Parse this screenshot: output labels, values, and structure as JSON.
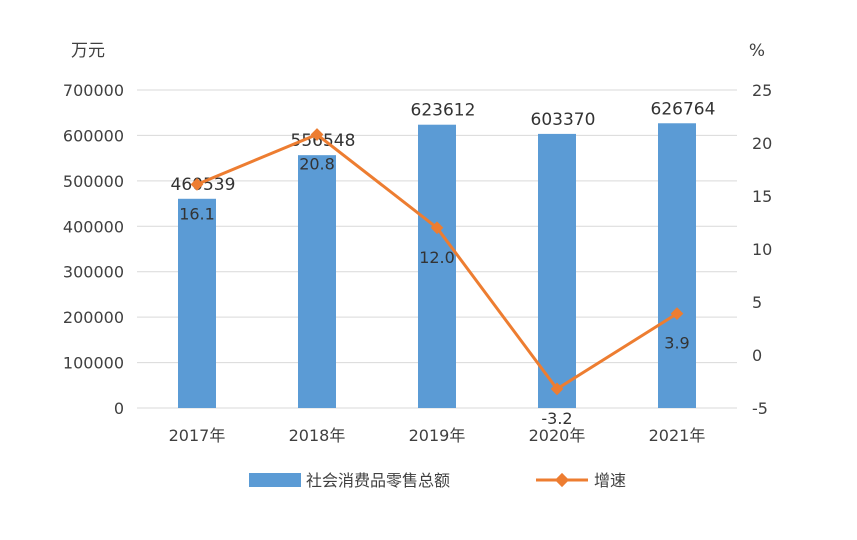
{
  "chart_data": {
    "type": "bar+line",
    "categories": [
      "2017年",
      "2018年",
      "2019年",
      "2020年",
      "2021年"
    ],
    "series": [
      {
        "name": "社会消费品零售总额",
        "type": "bar",
        "axis": "left",
        "values": [
          460539,
          556548,
          623612,
          603370,
          626764
        ],
        "labels": [
          "460539",
          "556548",
          "623612",
          "603370",
          "626764"
        ],
        "color": "#5B9BD5"
      },
      {
        "name": "增速",
        "type": "line",
        "axis": "right",
        "values": [
          16.1,
          20.8,
          12.0,
          -3.2,
          3.9
        ],
        "labels": [
          "16.1",
          "20.8",
          "12.0",
          "-3.2",
          "3.9"
        ],
        "color": "#ED7D31"
      }
    ],
    "y_left": {
      "unit": "万元",
      "min": 0,
      "max": 700000,
      "ticks": [
        0,
        100000,
        200000,
        300000,
        400000,
        500000,
        600000,
        700000
      ],
      "tick_labels": [
        "0",
        "100000",
        "200000",
        "300000",
        "400000",
        "500000",
        "600000",
        "700000"
      ]
    },
    "y_right": {
      "unit": "%",
      "min": -5,
      "max": 25,
      "ticks": [
        -5,
        0,
        5,
        10,
        15,
        20,
        25
      ],
      "tick_labels": [
        "-5",
        "0",
        "5",
        "10",
        "15",
        "20",
        "25"
      ]
    },
    "grid": true,
    "legend_position": "bottom",
    "gridline_color": "#D9D9D9"
  }
}
